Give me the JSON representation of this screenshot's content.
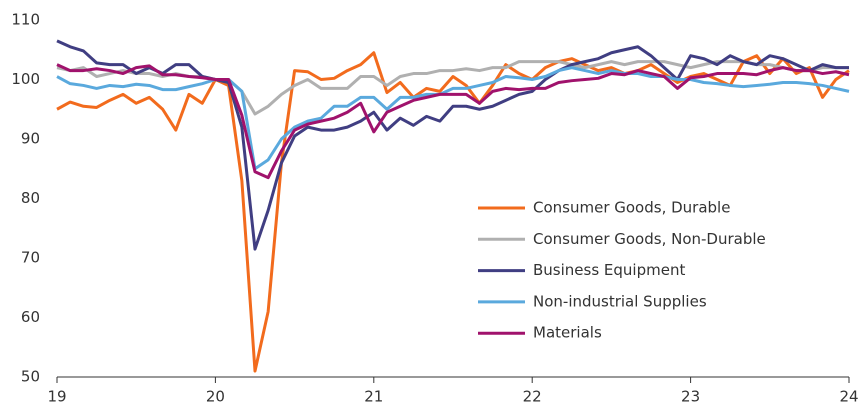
{
  "chart_data": {
    "type": "line",
    "x": [
      19,
      19.083,
      19.167,
      19.25,
      19.333,
      19.417,
      19.5,
      19.583,
      19.667,
      19.75,
      19.833,
      19.917,
      20,
      20.083,
      20.167,
      20.25,
      20.333,
      20.417,
      20.5,
      20.583,
      20.667,
      20.75,
      20.833,
      20.917,
      21,
      21.083,
      21.167,
      21.25,
      21.333,
      21.417,
      21.5,
      21.583,
      21.667,
      21.75,
      21.833,
      21.917,
      22,
      22.083,
      22.167,
      22.25,
      22.333,
      22.417,
      22.5,
      22.583,
      22.667,
      22.75,
      22.833,
      22.917,
      23,
      23.083,
      23.167,
      23.25,
      23.333,
      23.417,
      23.5,
      23.583,
      23.667,
      23.75,
      23.833,
      23.917,
      24
    ],
    "xlim": [
      19,
      24
    ],
    "xticks": [
      19,
      20,
      21,
      22,
      23,
      24
    ],
    "ylim": [
      50,
      110
    ],
    "yticks": [
      50,
      60,
      70,
      80,
      90,
      100,
      110
    ],
    "grid": false,
    "legend": "inside-lower-right",
    "series": [
      {
        "name": "Consumer Goods, Durable",
        "color": "#f26b1d",
        "values": [
          95,
          96.2,
          95.5,
          95.3,
          96.5,
          97.5,
          96,
          97,
          95,
          91.5,
          97.5,
          96,
          100,
          99,
          83,
          51,
          61,
          86,
          101.5,
          101.3,
          100,
          100.2,
          101.5,
          102.5,
          104.5,
          97.8,
          99.5,
          97,
          98.5,
          98,
          100.5,
          99,
          96,
          99,
          102.5,
          101,
          100,
          102,
          103,
          103.5,
          102.5,
          101.5,
          102,
          101,
          101.5,
          102.5,
          101,
          99.5,
          100.5,
          101,
          100,
          99,
          103,
          104,
          101,
          103.5,
          101,
          102,
          97,
          100,
          101.5
        ]
      },
      {
        "name": "Consumer Goods, Non-Durable",
        "color": "#b0b0b0",
        "values": [
          102,
          101.5,
          102,
          100.5,
          101,
          101.5,
          101,
          101,
          100.5,
          101,
          100.5,
          100.5,
          100,
          100,
          98,
          94.2,
          95.5,
          97.5,
          99,
          100,
          98.5,
          98.5,
          98.5,
          100.5,
          100.5,
          99,
          100.5,
          101,
          101,
          101.5,
          101.5,
          101.8,
          101.5,
          102,
          102,
          103,
          103,
          103,
          103,
          102.5,
          102,
          102.5,
          103,
          102.5,
          103,
          103,
          103,
          102.5,
          102,
          102.5,
          103,
          103,
          103,
          102.5,
          102.5,
          102,
          101.5,
          101.5,
          102,
          102,
          102
        ]
      },
      {
        "name": "Business Equipment",
        "color": "#403e82",
        "values": [
          106.5,
          105.5,
          104.8,
          102.8,
          102.5,
          102.5,
          101,
          102,
          101,
          102.5,
          102.5,
          100.5,
          100,
          99.5,
          92,
          71.5,
          78,
          86,
          90.5,
          92,
          91.5,
          91.5,
          92,
          93,
          94.5,
          91.5,
          93.5,
          92.3,
          93.8,
          93,
          95.5,
          95.5,
          95,
          95.5,
          96.5,
          97.5,
          98,
          100,
          101.5,
          102.5,
          103,
          103.5,
          104.5,
          105,
          105.5,
          104,
          102,
          100,
          104,
          103.5,
          102.5,
          104,
          103,
          102.5,
          104,
          103.5,
          102.5,
          101.5,
          102.5,
          102,
          102
        ]
      },
      {
        "name": "Non-industrial Supplies",
        "color": "#5aa9dd",
        "values": [
          100.5,
          99.3,
          99,
          98.5,
          99,
          98.8,
          99.2,
          99,
          98.3,
          98.3,
          98.8,
          99.3,
          100,
          100,
          98,
          85,
          86.5,
          90,
          92,
          93,
          93.5,
          95.5,
          95.5,
          97,
          97,
          95,
          97,
          97,
          97.5,
          97.5,
          98.5,
          98.5,
          99,
          99.5,
          100.5,
          100.3,
          100,
          100.5,
          101.5,
          102,
          101.5,
          101,
          101.5,
          101,
          101,
          100.5,
          100.5,
          100,
          100,
          99.5,
          99.3,
          99,
          98.8,
          99,
          99.2,
          99.5,
          99.5,
          99.3,
          99,
          98.5,
          98
        ]
      },
      {
        "name": "Materials",
        "color": "#a0126c",
        "values": [
          102.5,
          101.5,
          101.5,
          101.8,
          101.5,
          101,
          102,
          102.3,
          100.8,
          100.8,
          100.5,
          100.3,
          100,
          100,
          94,
          84.5,
          83.5,
          88,
          91.5,
          92.5,
          93,
          93.5,
          94.5,
          96,
          91.2,
          94.5,
          95.5,
          96.5,
          97,
          97.5,
          97.5,
          97.5,
          96,
          98,
          98.5,
          98.3,
          98.5,
          98.5,
          99.5,
          99.8,
          100,
          100.2,
          101,
          100.8,
          101.5,
          101,
          100.5,
          98.5,
          100.3,
          100.5,
          101,
          101,
          101,
          100.8,
          101.5,
          102,
          101.5,
          101.5,
          101,
          101.3,
          100.8
        ]
      }
    ]
  }
}
